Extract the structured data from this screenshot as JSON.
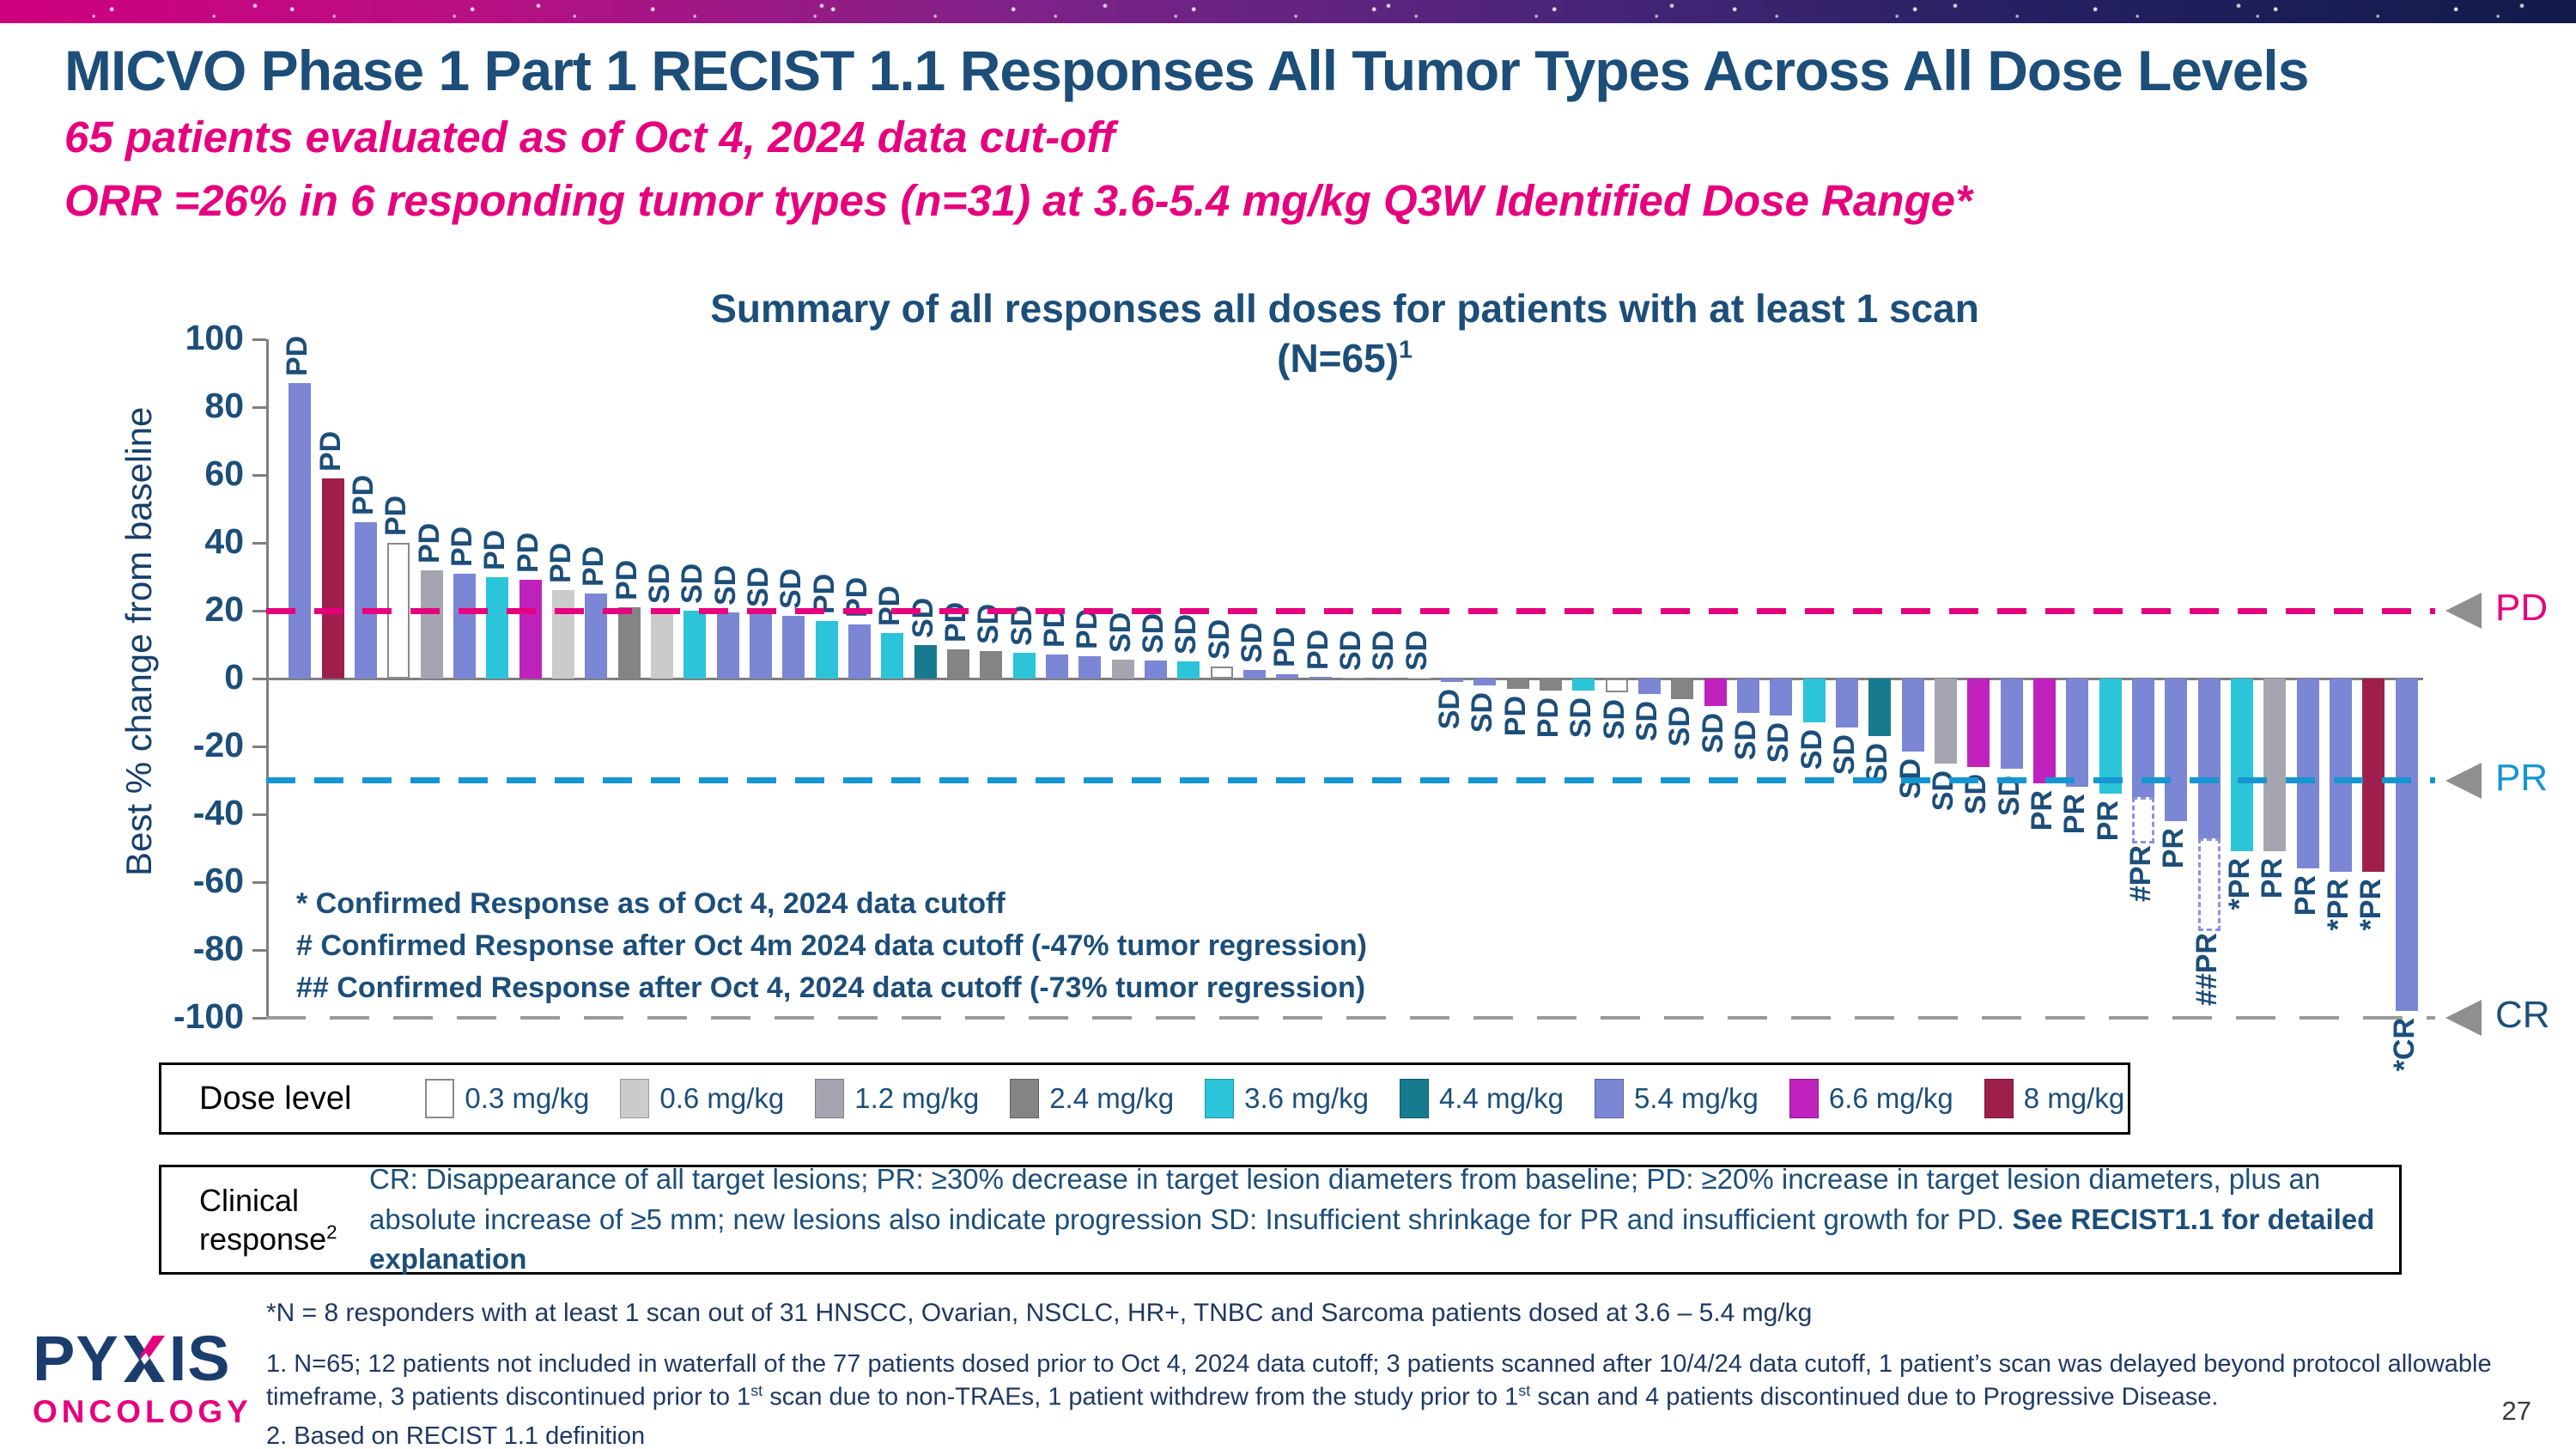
{
  "slide": {
    "title": "MICVO Phase 1 Part 1 RECIST 1.1 Responses All Tumor Types Across All Dose Levels",
    "subtitle1": "65 patients evaluated as of Oct 4, 2024 data cut-off",
    "subtitle2": "ORR =26% in 6 responding tumor types (n=31) at 3.6-5.4 mg/kg Q3W Identified Dose Range*",
    "page_number": "27"
  },
  "logo": {
    "text": "PYXIS",
    "part1": "PY",
    "part2": "IS",
    "sub": "ONCOLOGY"
  },
  "chart_data": {
    "type": "bar",
    "variant": "waterfall",
    "title_line1": "Summary of all responses all doses for patients with at least 1 scan",
    "title_line2": "(N=65)",
    "title_sup": "1",
    "ylabel": "Best % change from baseline",
    "ylim": [
      -100,
      100
    ],
    "yticks": [
      100,
      80,
      60,
      40,
      20,
      0,
      -20,
      -40,
      -60,
      -80,
      -100
    ],
    "grid": false,
    "reference_lines": [
      {
        "label": "PD",
        "value": 20,
        "color": "#e6007e",
        "label_color": "#e6007e",
        "weight": 7
      },
      {
        "label": "PR",
        "value": -30,
        "color": "#1595d2",
        "label_color": "#1595d2",
        "weight": 7
      },
      {
        "label": "CR",
        "value": -100,
        "color": "#9a9a9a",
        "label_color": "#1c4e79",
        "weight": 4
      }
    ],
    "annotations": [
      "* Confirmed Response as of Oct 4, 2024 data cutoff",
      "# Confirmed Response after Oct 4m 2024 data cutoff (-47% tumor regression)",
      "## Confirmed Response after Oct 4, 2024 data cutoff (-73% tumor regression)"
    ],
    "bars": [
      {
        "value": 87,
        "dose": "5.4 mg/kg",
        "response": "PD"
      },
      {
        "value": 59,
        "dose": "8 mg/kg",
        "response": "PD"
      },
      {
        "value": 46,
        "dose": "5.4 mg/kg",
        "response": "PD"
      },
      {
        "value": 40,
        "dose": "0.3 mg/kg",
        "response": "PD"
      },
      {
        "value": 32,
        "dose": "1.2 mg/kg",
        "response": "PD"
      },
      {
        "value": 31,
        "dose": "5.4 mg/kg",
        "response": "PD"
      },
      {
        "value": 30,
        "dose": "3.6 mg/kg",
        "response": "PD"
      },
      {
        "value": 29,
        "dose": "6.6 mg/kg",
        "response": "PD"
      },
      {
        "value": 26,
        "dose": "0.6 mg/kg",
        "response": "PD"
      },
      {
        "value": 25,
        "dose": "5.4 mg/kg",
        "response": "PD"
      },
      {
        "value": 21,
        "dose": "2.4 mg/kg",
        "response": "PD"
      },
      {
        "value": 20,
        "dose": "0.6 mg/kg",
        "response": "SD"
      },
      {
        "value": 20,
        "dose": "3.6 mg/kg",
        "response": "SD"
      },
      {
        "value": 19.5,
        "dose": "5.4 mg/kg",
        "response": "SD"
      },
      {
        "value": 19,
        "dose": "5.4 mg/kg",
        "response": "SD"
      },
      {
        "value": 18.5,
        "dose": "5.4 mg/kg",
        "response": "SD"
      },
      {
        "value": 17,
        "dose": "3.6 mg/kg",
        "response": "PD"
      },
      {
        "value": 16,
        "dose": "5.4 mg/kg",
        "response": "PD"
      },
      {
        "value": 13.5,
        "dose": "3.6 mg/kg",
        "response": "PD"
      },
      {
        "value": 10,
        "dose": "4.4 mg/kg",
        "response": "SD"
      },
      {
        "value": 8.5,
        "dose": "2.4 mg/kg",
        "response": "PD"
      },
      {
        "value": 8,
        "dose": "2.4 mg/kg",
        "response": "SD"
      },
      {
        "value": 7.5,
        "dose": "3.6 mg/kg",
        "response": "SD"
      },
      {
        "value": 7,
        "dose": "5.4 mg/kg",
        "response": "PD"
      },
      {
        "value": 6.5,
        "dose": "5.4 mg/kg",
        "response": "PD"
      },
      {
        "value": 5.6,
        "dose": "1.2 mg/kg",
        "response": "SD"
      },
      {
        "value": 5.2,
        "dose": "5.4 mg/kg",
        "response": "SD"
      },
      {
        "value": 5,
        "dose": "3.6 mg/kg",
        "response": "SD"
      },
      {
        "value": 3.6,
        "dose": "0.3 mg/kg",
        "response": "SD"
      },
      {
        "value": 2.6,
        "dose": "5.4 mg/kg",
        "response": "SD"
      },
      {
        "value": 1.2,
        "dose": "5.4 mg/kg",
        "response": "PD"
      },
      {
        "value": 0.5,
        "dose": "5.4 mg/kg",
        "response": "PD"
      },
      {
        "value": 0.3,
        "dose": "1.2 mg/kg",
        "response": "SD"
      },
      {
        "value": 0.2,
        "dose": "5.4 mg/kg",
        "response": "SD"
      },
      {
        "value": 0.2,
        "dose": "0.6 mg/kg",
        "response": "SD"
      },
      {
        "value": -1,
        "dose": "5.4 mg/kg",
        "response": "SD"
      },
      {
        "value": -2,
        "dose": "5.4 mg/kg",
        "response": "SD"
      },
      {
        "value": -3,
        "dose": "2.4 mg/kg",
        "response": "PD"
      },
      {
        "value": -3.5,
        "dose": "2.4 mg/kg",
        "response": "PD"
      },
      {
        "value": -3.5,
        "dose": "3.6 mg/kg",
        "response": "SD"
      },
      {
        "value": -4,
        "dose": "0.3 mg/kg",
        "response": "SD"
      },
      {
        "value": -4.5,
        "dose": "5.4 mg/kg",
        "response": "SD"
      },
      {
        "value": -6,
        "dose": "2.4 mg/kg",
        "response": "SD"
      },
      {
        "value": -8,
        "dose": "6.6 mg/kg",
        "response": "SD"
      },
      {
        "value": -10,
        "dose": "5.4 mg/kg",
        "response": "SD"
      },
      {
        "value": -11,
        "dose": "5.4 mg/kg",
        "response": "SD"
      },
      {
        "value": -13,
        "dose": "3.6 mg/kg",
        "response": "SD"
      },
      {
        "value": -14.5,
        "dose": "5.4 mg/kg",
        "response": "SD"
      },
      {
        "value": -17,
        "dose": "4.4 mg/kg",
        "response": "SD"
      },
      {
        "value": -21.5,
        "dose": "5.4 mg/kg",
        "response": "SD"
      },
      {
        "value": -25,
        "dose": "1.2 mg/kg",
        "response": "SD"
      },
      {
        "value": -26,
        "dose": "6.6 mg/kg",
        "response": "SD"
      },
      {
        "value": -26.5,
        "dose": "5.4 mg/kg",
        "response": "SD"
      },
      {
        "value": -31,
        "dose": "6.6 mg/kg",
        "response": "PR"
      },
      {
        "value": -32,
        "dose": "5.4 mg/kg",
        "response": "PR"
      },
      {
        "value": -34,
        "dose": "3.6 mg/kg",
        "response": "PR"
      },
      {
        "value": -35,
        "dose": "5.4 mg/kg",
        "response": "#PR",
        "dashed_to": -47
      },
      {
        "value": -42,
        "dose": "5.4 mg/kg",
        "response": "PR"
      },
      {
        "value": -47,
        "dose": "5.4 mg/kg",
        "response": "##PR",
        "dashed_to": -73
      },
      {
        "value": -51,
        "dose": "3.6 mg/kg",
        "response": "*PR"
      },
      {
        "value": -51,
        "dose": "1.2 mg/kg",
        "response": "PR"
      },
      {
        "value": -56,
        "dose": "5.4 mg/kg",
        "response": "PR"
      },
      {
        "value": -57,
        "dose": "5.4 mg/kg",
        "response": "*PR"
      },
      {
        "value": -57,
        "dose": "8 mg/kg",
        "response": "*PR"
      },
      {
        "value": -98,
        "dose": "5.4 mg/kg",
        "response": "*CR"
      }
    ]
  },
  "legend": {
    "title": "Dose level",
    "items": [
      {
        "label": "0.3 mg/kg",
        "color": "#ffffff"
      },
      {
        "label": "0.6 mg/kg",
        "color": "#cbcbcb"
      },
      {
        "label": "1.2 mg/kg",
        "color": "#a5a5b1"
      },
      {
        "label": "2.4 mg/kg",
        "color": "#848484"
      },
      {
        "label": "3.6 mg/kg",
        "color": "#2bc4d9"
      },
      {
        "label": "4.4 mg/kg",
        "color": "#177a8e"
      },
      {
        "label": "5.4 mg/kg",
        "color": "#7b86d4"
      },
      {
        "label": "6.6 mg/kg",
        "color": "#bf22bd"
      },
      {
        "label": "8 mg/kg",
        "color": "#9e1f4b"
      }
    ]
  },
  "clinical": {
    "label_line1": "Clinical",
    "label_line2": "response",
    "label_sup": "2",
    "text": "CR: Disappearance of all target lesions; PR: ≥30% decrease in target lesion diameters from baseline; PD: ≥20% increase in target lesion diameters, plus an absolute increase of ≥5 mm; new lesions also indicate progression SD: Insufficient shrinkage for PR and insufficient growth for PD. ",
    "text_bold": "See RECIST1.1 for detailed explanation"
  },
  "footnotes": {
    "star": "*N = 8 responders with at least 1 scan out of 31 HNSCC, Ovarian, NSCLC, HR+, TNBC and Sarcoma patients dosed at 3.6 – 5.4 mg/kg",
    "n1_parts": [
      "1.  N=65; 12 patients not included in waterfall of the 77 patients dosed prior to Oct 4, 2024 data cutoff; 3 patients scanned after 10/4/24 data cutoff, 1 patient’s scan was delayed beyond protocol allowable timeframe, 3 patients discontinued prior to 1",
      "st",
      " scan due to non-TRAEs, 1 patient withdrew from the study prior to 1",
      "st",
      " scan and 4 patients discontinued due to Progressive Disease."
    ],
    "n2": "2. Based on RECIST 1.1 definition"
  }
}
